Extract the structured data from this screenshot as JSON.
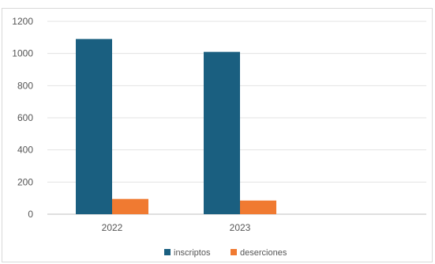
{
  "chart_data": {
    "type": "bar",
    "categories": [
      "2022",
      "2023"
    ],
    "series": [
      {
        "name": "inscriptos",
        "values": [
          1090,
          1010
        ],
        "color": "#1a5f80"
      },
      {
        "name": "deserciones",
        "values": [
          95,
          85
        ],
        "color": "#f07a31"
      }
    ],
    "ylim": [
      0,
      1200
    ],
    "yticks": [
      0,
      200,
      400,
      600,
      800,
      1000,
      1200
    ],
    "grid": true,
    "legend_position": "bottom",
    "title": "",
    "xlabel": "",
    "ylabel": ""
  }
}
